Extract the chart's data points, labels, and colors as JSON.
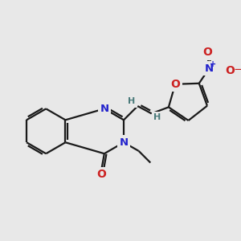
{
  "background_color": "#e8e8e8",
  "bond_color": "#1a1a1a",
  "bond_width": 1.6,
  "atom_colors": {
    "N": "#2222cc",
    "O": "#cc2222",
    "H": "#4a7a7a"
  },
  "xlim": [
    0,
    10
  ],
  "ylim": [
    0,
    10
  ],
  "figsize": [
    3.0,
    3.0
  ],
  "dpi": 100
}
